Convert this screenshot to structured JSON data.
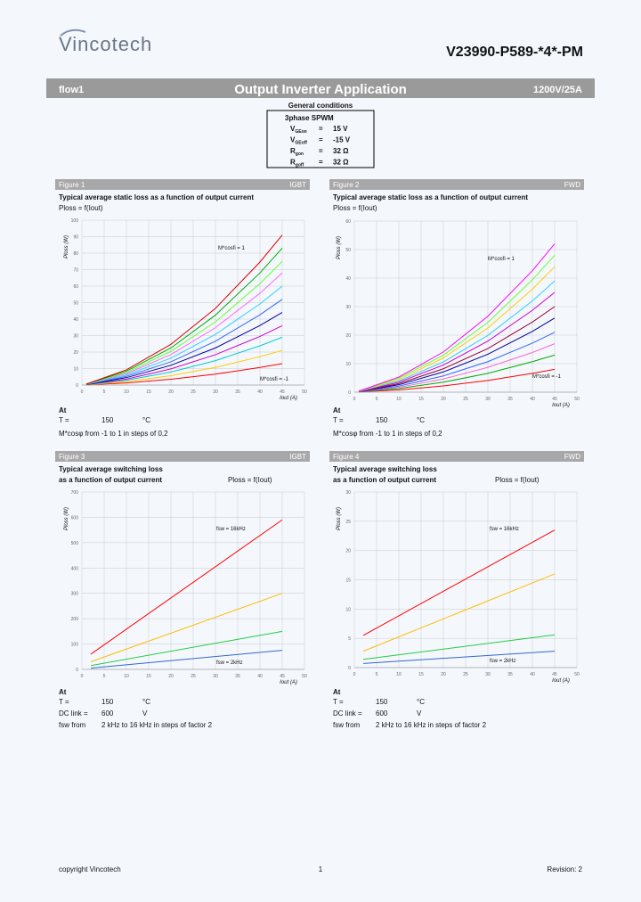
{
  "header": {
    "logo": "Vincotech",
    "part": "V23990-P589-*4*-PM"
  },
  "banner": {
    "left": "flow1",
    "title": "Output Inverter Application",
    "right": "1200V/25A"
  },
  "conditions": {
    "title": "General conditions",
    "mode": "3phase SPWM",
    "rows": [
      {
        "label": "V",
        "sub": "GEon",
        "eq": "=",
        "value": "15 V"
      },
      {
        "label": "V",
        "sub": "GEoff",
        "eq": "=",
        "value": "-15 V"
      },
      {
        "label": "R",
        "sub": "gon",
        "eq": "=",
        "value": "32 Ω"
      },
      {
        "label": "R",
        "sub": "goff",
        "eq": "=",
        "value": "32 Ω"
      }
    ]
  },
  "chart_data": [
    {
      "type": "line",
      "figure": "Figure 1",
      "device": "IGBT",
      "title": [
        "Typical average static loss as a function of output current"
      ],
      "formula": "Ploss = f(Iout)",
      "ylabel": "Ploss (W)",
      "xlabel": "Iout (A)",
      "x": [
        1,
        10,
        20,
        30,
        40,
        45
      ],
      "xlim": [
        0,
        50
      ],
      "xticks": [
        0,
        5,
        10,
        15,
        20,
        25,
        30,
        35,
        40,
        45,
        50
      ],
      "ylim": [
        0,
        100
      ],
      "yticks": [
        0,
        10,
        20,
        30,
        40,
        50,
        60,
        70,
        80,
        90,
        100
      ],
      "grid": true,
      "annotations": [
        "M*cosfi = 1",
        "M*cosfi = -1"
      ],
      "series": [
        {
          "color": "#ff0000",
          "values": [
            0.1,
            1.3,
            3.5,
            6.6,
            10.7,
            13
          ]
        },
        {
          "color": "#ffcc00",
          "values": [
            0.1,
            2.1,
            5.7,
            10.7,
            17.2,
            21
          ]
        },
        {
          "color": "#00cccc",
          "values": [
            0.2,
            2.9,
            7.9,
            14.8,
            23.8,
            29
          ]
        },
        {
          "color": "#cc00cc",
          "values": [
            0.3,
            3.6,
            9.8,
            18.4,
            29.5,
            36
          ]
        },
        {
          "color": "#000099",
          "values": [
            0.3,
            4.5,
            12.0,
            22.5,
            36.1,
            44
          ]
        },
        {
          "color": "#3366ff",
          "values": [
            0.4,
            5.3,
            14.1,
            26.6,
            42.6,
            52
          ]
        },
        {
          "color": "#33ccff",
          "values": [
            0.4,
            6.1,
            16.3,
            30.7,
            49.2,
            60
          ]
        },
        {
          "color": "#ff66ff",
          "values": [
            0.5,
            6.9,
            18.5,
            34.8,
            55.7,
            68
          ]
        },
        {
          "color": "#66ff33",
          "values": [
            0.5,
            7.6,
            20.4,
            38.3,
            61.5,
            75
          ]
        },
        {
          "color": "#00aa00",
          "values": [
            0.6,
            8.4,
            22.5,
            42.4,
            68.0,
            83
          ]
        },
        {
          "color": "#dd0000",
          "values": [
            0.6,
            9.2,
            24.7,
            46.5,
            74.6,
            91
          ]
        }
      ],
      "notes": {
        "at": "At",
        "rows": [
          {
            "label": "T =",
            "value": "150",
            "unit": "°C"
          }
        ],
        "text": "M*cosφ from -1 to 1 in steps of 0,2"
      }
    },
    {
      "type": "line",
      "figure": "Figure 2",
      "device": "FWD",
      "title": [
        "Typical average static loss as a function of output current"
      ],
      "formula": "Ploss = f(Iout)",
      "ylabel": "Ploss (W)",
      "xlabel": "Iout (A)",
      "x": [
        1,
        10,
        20,
        30,
        40,
        45
      ],
      "xlim": [
        0,
        50
      ],
      "xticks": [
        0,
        5,
        10,
        15,
        20,
        25,
        30,
        35,
        40,
        45,
        50
      ],
      "ylim": [
        0,
        60
      ],
      "yticks": [
        0,
        10,
        20,
        30,
        40,
        50,
        60
      ],
      "grid": true,
      "annotations": [
        "M*cosfi = 1",
        "M*cosfi = -1"
      ],
      "series": [
        {
          "color": "#ff0000",
          "values": [
            0.1,
            0.8,
            2.2,
            4.1,
            6.6,
            8
          ]
        },
        {
          "color": "#00aa00",
          "values": [
            0.1,
            1.3,
            3.5,
            6.6,
            10.7,
            13
          ]
        },
        {
          "color": "#ff66cc",
          "values": [
            0.1,
            1.7,
            4.6,
            8.7,
            13.9,
            17
          ]
        },
        {
          "color": "#3366ff",
          "values": [
            0.1,
            2.1,
            5.7,
            10.7,
            17.2,
            21
          ]
        },
        {
          "color": "#000099",
          "values": [
            0.2,
            2.6,
            7.1,
            13.3,
            21.3,
            26
          ]
        },
        {
          "color": "#990033",
          "values": [
            0.2,
            3.0,
            8.2,
            15.3,
            24.6,
            30
          ]
        },
        {
          "color": "#cc00cc",
          "values": [
            0.2,
            3.5,
            9.5,
            17.9,
            28.7,
            35
          ]
        },
        {
          "color": "#33ccff",
          "values": [
            0.3,
            3.9,
            10.6,
            19.9,
            32.0,
            39
          ]
        },
        {
          "color": "#ffcc00",
          "values": [
            0.3,
            4.4,
            12.0,
            22.5,
            36.1,
            44
          ]
        },
        {
          "color": "#66ff33",
          "values": [
            0.3,
            4.9,
            13.0,
            24.5,
            39.4,
            48
          ]
        },
        {
          "color": "#ff00ff",
          "values": [
            0.4,
            5.3,
            14.1,
            26.6,
            42.6,
            52
          ]
        }
      ],
      "notes": {
        "at": "At",
        "rows": [
          {
            "label": "T =",
            "value": "150",
            "unit": "°C"
          }
        ],
        "text": "M*cosφ from -1 to 1 in steps of 0,2"
      }
    },
    {
      "type": "line",
      "figure": "Figure 3",
      "device": "IGBT",
      "title": [
        "Typical average switching loss",
        "as a function of output current"
      ],
      "formula": "Ploss = f(Iout)",
      "ylabel": "Ploss (W)",
      "xlabel": "Iout (A)",
      "x": [
        2,
        45
      ],
      "xlim": [
        0,
        50
      ],
      "xticks": [
        0,
        5,
        10,
        15,
        20,
        25,
        30,
        35,
        40,
        45,
        50
      ],
      "ylim": [
        0,
        700
      ],
      "yticks": [
        0,
        100,
        200,
        300,
        400,
        500,
        600,
        700
      ],
      "grid": true,
      "annotations": [
        "fsw = 16kHz",
        "fsw = 2kHz"
      ],
      "series": [
        {
          "color": "#ff0000",
          "values": [
            60,
            590
          ]
        },
        {
          "color": "#ffbb00",
          "values": [
            30,
            300
          ]
        },
        {
          "color": "#22cc44",
          "values": [
            15,
            150
          ]
        },
        {
          "color": "#3366cc",
          "values": [
            5,
            75
          ]
        }
      ],
      "notes": {
        "at": "At",
        "rows": [
          {
            "label": "T =",
            "value": "150",
            "unit": "°C"
          },
          {
            "label": "DC link =",
            "value": "600",
            "unit": "V"
          },
          {
            "label": "fsw from",
            "value": "2 kHz to 16 kHz in steps of factor 2"
          }
        ]
      }
    },
    {
      "type": "line",
      "figure": "Figure 4",
      "device": "FWD",
      "title": [
        "Typical average switching loss",
        "as a function of output current"
      ],
      "formula": "Ploss = f(Iout)",
      "ylabel": "Ploss (W)",
      "xlabel": "Iout (A)",
      "x": [
        2,
        45
      ],
      "xlim": [
        0,
        50
      ],
      "xticks": [
        0,
        5,
        10,
        15,
        20,
        25,
        30,
        35,
        40,
        45,
        50
      ],
      "ylim": [
        0,
        30
      ],
      "yticks": [
        0,
        5,
        10,
        15,
        20,
        25,
        30
      ],
      "grid": true,
      "annotations": [
        "fsw = 16kHz",
        "fsw = 2kHz"
      ],
      "series": [
        {
          "color": "#ff0000",
          "values": [
            5.5,
            23.5
          ]
        },
        {
          "color": "#ffbb00",
          "values": [
            2.8,
            16
          ]
        },
        {
          "color": "#22cc44",
          "values": [
            1.4,
            5.6
          ]
        },
        {
          "color": "#3366cc",
          "values": [
            0.7,
            2.8
          ]
        }
      ],
      "notes": {
        "at": "At",
        "rows": [
          {
            "label": "T =",
            "value": "150",
            "unit": "°C"
          },
          {
            "label": "DC link =",
            "value": "600",
            "unit": "V"
          },
          {
            "label": "fsw from",
            "value": "2 kHz to 16 kHz in steps of factor 2"
          }
        ]
      }
    }
  ],
  "footer": {
    "left": "copyright Vincotech",
    "center": "1",
    "right": "Revision: 2"
  }
}
